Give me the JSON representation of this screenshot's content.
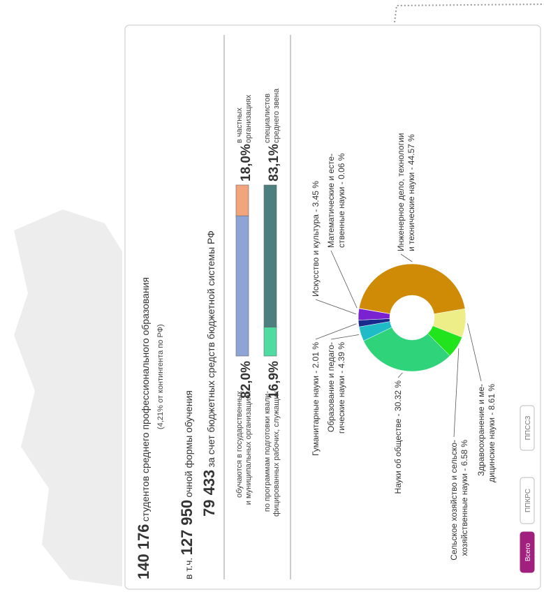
{
  "summary": {
    "total": "140 176",
    "total_text": "студентов среднего профессионального образования",
    "share": "(4,21% от контингента по РФ)",
    "fulltime_prefix": "в т.ч.",
    "fulltime": "127 950",
    "fulltime_text": "очной формы обучения",
    "budget": "79 433",
    "budget_text": "за счет бюджетных средств бюджетной системы РФ"
  },
  "bars": [
    {
      "left_label": [
        "обучаются в государственных",
        "и муниципальных организациях"
      ],
      "right_label": [
        "в частных",
        "организациях"
      ],
      "values": [
        82.0,
        18.0
      ],
      "value_labels": [
        "82,0%",
        "18,0%"
      ],
      "colors": [
        "#8fa4d6",
        "#f2a47c"
      ]
    },
    {
      "left_label": [
        "по программам подготовки квали-",
        "фицированных рабочих, служащих"
      ],
      "right_label": [
        "специалистов",
        "среднего звена"
      ],
      "values": [
        16.9,
        83.1
      ],
      "value_labels": [
        "16,9%",
        "83,1%"
      ],
      "colors": [
        "#4fdca2",
        "#4d7f7e"
      ]
    }
  ],
  "donut": {
    "segments": [
      {
        "label": [
          "Инженерное дело, технологии",
          "и технические науки - 44.57 %"
        ],
        "value": 44.57,
        "color": "#d08b06"
      },
      {
        "label": [
          "Здравоохранение и ме-",
          "дицинские науки - 8.61 %"
        ],
        "value": 8.61,
        "color": "#eeee88"
      },
      {
        "label": [
          "Сельское хозяйство и сельско-",
          "хозяйственные науки - 6.58 %"
        ],
        "value": 6.58,
        "color": "#22e41c"
      },
      {
        "label": [
          "Науки об обществе - 30.32 %"
        ],
        "value": 30.32,
        "color": "#2fd37a"
      },
      {
        "label": [
          "Образование и педаго-",
          "гические науки - 4.39 %"
        ],
        "value": 4.39,
        "color": "#1fbcc8"
      },
      {
        "label": [
          "Гуманитарные науки - 2.01 %"
        ],
        "value": 2.01,
        "color": "#1a2a8c"
      },
      {
        "label": [
          "Искусство и культура - 3.45 %"
        ],
        "value": 3.45,
        "color": "#7a22d2"
      },
      {
        "label": [
          "Математические и есте-",
          "ственные науки - 0.06 %"
        ],
        "value": 0.06,
        "color": "#c03060"
      }
    ]
  },
  "buttons": [
    "Всего",
    "ППКРС",
    "ППССЗ"
  ]
}
